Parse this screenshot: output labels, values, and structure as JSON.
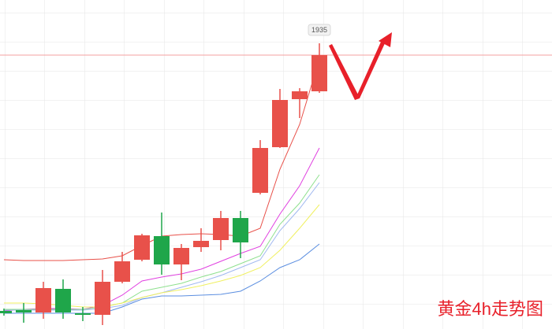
{
  "chart_data": {
    "type": "candlestick",
    "title": "黄金4h走势图",
    "ylim": [
      1789.8,
      1957
    ],
    "up_color": "#e8514a",
    "down_color": "#1fa64a",
    "open": [
      1799,
      1799.4,
      1798.2,
      1810.2,
      1797.8,
      1797,
      1813.8,
      1825,
      1837,
      1822.6,
      1831.4,
      1835,
      1846.2,
      1859,
      1882.2,
      1906.6,
      1910.6
    ],
    "high": [
      1800.2,
      1803,
      1813.8,
      1815,
      1801,
      1819.8,
      1829,
      1838.2,
      1849,
      1833,
      1841,
      1849.8,
      1849.8,
      1885.8,
      1911.8,
      1912.2,
      1935
    ],
    "low": [
      1796.6,
      1793,
      1795,
      1795,
      1793.8,
      1791.8,
      1813,
      1824.2,
      1817.4,
      1814.6,
      1829,
      1829.8,
      1825.8,
      1858.2,
      1881.8,
      1897,
      1909.8
    ],
    "close": [
      1797.8,
      1798.2,
      1810.6,
      1798.2,
      1797,
      1813.8,
      1824.2,
      1837.4,
      1822.6,
      1831,
      1834.6,
      1846.2,
      1833.8,
      1881.8,
      1906.2,
      1910.6,
      1929
    ],
    "lines": [
      {
        "color": "#e8514a",
        "values": [
          1825,
          1824.6,
          1824.6,
          1824.6,
          1825,
          1825.4,
          1827,
          1832.2,
          1837,
          1837.8,
          1838.2,
          1837.8,
          1837,
          1841,
          1871,
          1893.8,
          1927
        ]
      },
      {
        "color": "#e040e0",
        "values": [
          1799,
          1799.8,
          1800.2,
          1800.2,
          1799.8,
          1801.8,
          1807,
          1814.2,
          1816.2,
          1817.8,
          1820.2,
          1824.2,
          1828.2,
          1831.8,
          1848.2,
          1862.6,
          1881.8
        ]
      },
      {
        "color": "#8ee08e",
        "values": [
          1799.8,
          1799.8,
          1799.8,
          1799.8,
          1799.8,
          1801,
          1803,
          1809,
          1811,
          1813,
          1816.2,
          1819,
          1823,
          1827,
          1843,
          1853.8,
          1868.2
        ]
      },
      {
        "color": "#a0b8f0",
        "values": [
          1799.4,
          1799.4,
          1799.4,
          1799.4,
          1799.4,
          1800.2,
          1801.8,
          1805.8,
          1808.2,
          1811,
          1813.8,
          1817,
          1821,
          1825,
          1839.8,
          1851,
          1864.2
        ]
      },
      {
        "color": "#f0f060",
        "values": [
          1803,
          1803,
          1802.6,
          1801.8,
          1801,
          1801,
          1803,
          1805.8,
          1808.2,
          1809.8,
          1811.8,
          1814.2,
          1817,
          1821,
          1829.8,
          1841,
          1853
        ]
      },
      {
        "color": "#5b8ee0",
        "values": [
          1797.8,
          1797.8,
          1797.8,
          1797.8,
          1797.8,
          1797.8,
          1801,
          1805,
          1806.6,
          1806.6,
          1807,
          1807.4,
          1809,
          1814.2,
          1821,
          1825,
          1833
        ]
      }
    ]
  }
}
